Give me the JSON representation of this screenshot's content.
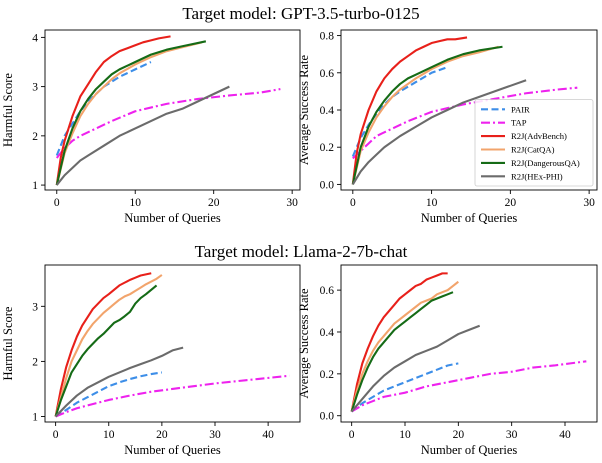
{
  "figure": {
    "row_titles": [
      "Target model: GPT-3.5-turbo-0125",
      "Target model: Llama-2-7b-chat"
    ]
  },
  "colors": {
    "PAIR": "#3d8ee8",
    "TAP": "#ee22ee",
    "R2J(AdvBench)": "#e8201a",
    "R2J(CatQA)": "#f2a46c",
    "R2J(DangerousQA)": "#156b16",
    "R2J(HEx-PHI)": "#6b6b6b"
  },
  "chart_data": [
    {
      "type": "line",
      "row_title": "Target model: GPT-3.5-turbo-0125",
      "xlabel": "Number of Queries",
      "ylabel": "Harmful Score",
      "xlim": [
        -1.5,
        31
      ],
      "ylim": [
        0.9,
        4.15
      ],
      "xticks": [
        0,
        10,
        20,
        30
      ],
      "yticks": [
        1,
        2,
        3,
        4
      ],
      "legend": null,
      "series": [
        {
          "name": "PAIR",
          "style": "dashed",
          "x": [
            0,
            0.5,
            1,
            2,
            3,
            4,
            5,
            6,
            8,
            10,
            12
          ],
          "y": [
            1.6,
            1.8,
            2.0,
            2.25,
            2.5,
            2.7,
            2.85,
            3.0,
            3.2,
            3.35,
            3.5
          ]
        },
        {
          "name": "TAP",
          "style": "dashdot",
          "x": [
            0,
            1,
            2,
            3,
            5,
            7,
            10,
            14,
            18,
            22,
            26,
            28.5
          ],
          "y": [
            1.55,
            1.75,
            1.9,
            2.0,
            2.15,
            2.3,
            2.5,
            2.65,
            2.75,
            2.82,
            2.88,
            2.95
          ]
        },
        {
          "name": "R2J(AdvBench)",
          "style": "solid",
          "x": [
            0,
            0.5,
            1,
            2,
            3,
            4,
            5,
            6,
            7,
            8,
            9,
            10,
            11,
            12,
            13,
            14.5
          ],
          "y": [
            1.0,
            1.55,
            1.9,
            2.4,
            2.8,
            3.05,
            3.3,
            3.5,
            3.62,
            3.72,
            3.78,
            3.84,
            3.9,
            3.94,
            3.98,
            4.02
          ]
        },
        {
          "name": "R2J(CatQA)",
          "style": "solid",
          "x": [
            0,
            1,
            2,
            3,
            4,
            5,
            6,
            7,
            8,
            10,
            12,
            14,
            16,
            18.5
          ],
          "y": [
            1.0,
            1.65,
            2.05,
            2.4,
            2.65,
            2.85,
            3.0,
            3.15,
            3.27,
            3.45,
            3.6,
            3.72,
            3.8,
            3.9
          ]
        },
        {
          "name": "R2J(DangerousQA)",
          "style": "solid",
          "x": [
            0,
            1,
            2,
            3,
            4,
            5,
            6,
            7,
            8,
            10,
            12,
            14,
            16,
            19
          ],
          "y": [
            1.0,
            1.7,
            2.15,
            2.5,
            2.75,
            2.95,
            3.1,
            3.25,
            3.35,
            3.5,
            3.65,
            3.75,
            3.82,
            3.92
          ]
        },
        {
          "name": "R2J(HEx-PHI)",
          "style": "solid",
          "x": [
            0,
            1,
            2,
            3,
            4,
            6,
            8,
            10,
            12,
            14,
            16,
            18,
            20,
            22
          ],
          "y": [
            1.0,
            1.2,
            1.35,
            1.5,
            1.6,
            1.8,
            2.0,
            2.15,
            2.3,
            2.45,
            2.55,
            2.7,
            2.85,
            3.0
          ]
        }
      ]
    },
    {
      "type": "line",
      "row_title": "Target model: GPT-3.5-turbo-0125",
      "xlabel": "Number of Queries",
      "ylabel": "Average Success Rate",
      "xlim": [
        -1.5,
        31
      ],
      "ylim": [
        -0.03,
        0.83
      ],
      "xticks": [
        0,
        10,
        20,
        30
      ],
      "yticks": [
        0.0,
        0.2,
        0.4,
        0.6,
        0.8
      ],
      "ytick_labels": [
        "0.0",
        "0.2",
        "0.4",
        "0.6",
        "0.8"
      ],
      "legend": {
        "placement": "lower-right",
        "entries": [
          "PAIR",
          "TAP",
          "R2J(AdvBench)",
          "R2J(CatQA)",
          "R2J(DangerousQA)",
          "R2J(HEx-PHI)"
        ]
      },
      "series": [
        {
          "name": "PAIR",
          "style": "dashed",
          "x": [
            0,
            0.5,
            1,
            2,
            3,
            4,
            5,
            6,
            8,
            10,
            12
          ],
          "y": [
            0.15,
            0.2,
            0.25,
            0.32,
            0.38,
            0.43,
            0.47,
            0.5,
            0.55,
            0.6,
            0.63
          ]
        },
        {
          "name": "TAP",
          "style": "dashdot",
          "x": [
            0,
            1,
            2,
            3,
            5,
            7,
            10,
            14,
            18,
            22,
            26,
            28.5
          ],
          "y": [
            0.14,
            0.18,
            0.22,
            0.26,
            0.3,
            0.34,
            0.39,
            0.43,
            0.46,
            0.49,
            0.51,
            0.52
          ]
        },
        {
          "name": "R2J(AdvBench)",
          "style": "solid",
          "x": [
            0,
            0.5,
            1,
            2,
            3,
            4,
            5,
            6,
            7,
            8,
            9,
            10,
            11,
            12,
            13,
            14.5
          ],
          "y": [
            0.0,
            0.17,
            0.27,
            0.4,
            0.5,
            0.57,
            0.62,
            0.66,
            0.69,
            0.72,
            0.74,
            0.76,
            0.77,
            0.78,
            0.78,
            0.79
          ]
        },
        {
          "name": "R2J(CatQA)",
          "style": "solid",
          "x": [
            0,
            1,
            2,
            3,
            4,
            5,
            6,
            7,
            8,
            10,
            12,
            14,
            16,
            18.5
          ],
          "y": [
            0.0,
            0.18,
            0.28,
            0.36,
            0.42,
            0.47,
            0.51,
            0.54,
            0.57,
            0.62,
            0.66,
            0.69,
            0.71,
            0.74
          ]
        },
        {
          "name": "R2J(DangerousQA)",
          "style": "solid",
          "x": [
            0,
            1,
            2,
            3,
            4,
            5,
            6,
            7,
            8,
            10,
            12,
            14,
            16,
            19
          ],
          "y": [
            0.0,
            0.2,
            0.31,
            0.39,
            0.45,
            0.5,
            0.54,
            0.57,
            0.59,
            0.63,
            0.67,
            0.7,
            0.72,
            0.74
          ]
        },
        {
          "name": "R2J(HEx-PHI)",
          "style": "solid",
          "x": [
            0,
            1,
            2,
            3,
            4,
            6,
            8,
            10,
            12,
            14,
            16,
            18,
            20,
            22
          ],
          "y": [
            0.0,
            0.07,
            0.12,
            0.16,
            0.2,
            0.26,
            0.31,
            0.36,
            0.4,
            0.44,
            0.47,
            0.5,
            0.53,
            0.56
          ]
        }
      ]
    },
    {
      "type": "line",
      "row_title": "Target model: Llama-2-7b-chat",
      "xlabel": "Number of Queries",
      "ylabel": "Harmful Score",
      "xlim": [
        -2,
        46
      ],
      "ylim": [
        0.9,
        3.75
      ],
      "xticks": [
        0,
        10,
        20,
        30,
        40
      ],
      "yticks": [
        1,
        2,
        3
      ],
      "legend": null,
      "series": [
        {
          "name": "PAIR",
          "style": "dashed",
          "x": [
            0,
            2,
            4,
            6,
            8,
            10,
            12,
            14,
            16,
            18,
            20
          ],
          "y": [
            1.0,
            1.12,
            1.25,
            1.35,
            1.45,
            1.55,
            1.62,
            1.68,
            1.73,
            1.77,
            1.8
          ]
        },
        {
          "name": "TAP",
          "style": "dashdot",
          "x": [
            0,
            2,
            4,
            6,
            8,
            10,
            14,
            18,
            22,
            26,
            30,
            34,
            38,
            41,
            44
          ],
          "y": [
            1.0,
            1.08,
            1.15,
            1.2,
            1.25,
            1.3,
            1.38,
            1.45,
            1.5,
            1.55,
            1.6,
            1.64,
            1.68,
            1.71,
            1.74
          ]
        },
        {
          "name": "R2J(AdvBench)",
          "style": "solid",
          "x": [
            0,
            1,
            2,
            3,
            4,
            5,
            6,
            7,
            8,
            9,
            10,
            11,
            12,
            13,
            14,
            15,
            16,
            17,
            18
          ],
          "y": [
            1.0,
            1.5,
            1.9,
            2.2,
            2.45,
            2.65,
            2.8,
            2.95,
            3.05,
            3.15,
            3.22,
            3.3,
            3.38,
            3.43,
            3.48,
            3.52,
            3.56,
            3.58,
            3.6
          ]
        },
        {
          "name": "R2J(CatQA)",
          "style": "solid",
          "x": [
            0,
            1,
            2,
            3,
            4,
            5,
            6,
            7,
            8,
            9,
            10,
            11,
            12,
            13,
            14,
            15,
            16,
            17,
            18,
            19,
            20
          ],
          "y": [
            1.0,
            1.35,
            1.7,
            2.0,
            2.2,
            2.4,
            2.55,
            2.68,
            2.78,
            2.88,
            2.96,
            3.04,
            3.12,
            3.18,
            3.22,
            3.28,
            3.34,
            3.4,
            3.45,
            3.5,
            3.57
          ]
        },
        {
          "name": "R2J(DangerousQA)",
          "style": "solid",
          "x": [
            0,
            1,
            2,
            3,
            4,
            5,
            6,
            7,
            8,
            9,
            10,
            11,
            12,
            13,
            14,
            15,
            16,
            17,
            18,
            19
          ],
          "y": [
            1.0,
            1.3,
            1.55,
            1.8,
            1.95,
            2.1,
            2.22,
            2.32,
            2.42,
            2.5,
            2.6,
            2.7,
            2.75,
            2.82,
            2.9,
            3.05,
            3.15,
            3.22,
            3.3,
            3.38
          ]
        },
        {
          "name": "R2J(HEx-PHI)",
          "style": "solid",
          "x": [
            0,
            2,
            4,
            6,
            8,
            10,
            12,
            14,
            16,
            18,
            20,
            22,
            24
          ],
          "y": [
            1.0,
            1.2,
            1.38,
            1.52,
            1.62,
            1.72,
            1.8,
            1.88,
            1.95,
            2.02,
            2.1,
            2.2,
            2.25
          ]
        }
      ]
    },
    {
      "type": "line",
      "row_title": "Target model: Llama-2-7b-chat",
      "xlabel": "Number of Queries",
      "ylabel": "Average Success Rate",
      "xlim": [
        -2,
        46
      ],
      "ylim": [
        -0.03,
        0.72
      ],
      "xticks": [
        0,
        10,
        20,
        30,
        40
      ],
      "yticks": [
        0.0,
        0.2,
        0.4,
        0.6
      ],
      "ytick_labels": [
        "0.0",
        "0.2",
        "0.4",
        "0.6"
      ],
      "legend": null,
      "series": [
        {
          "name": "PAIR",
          "style": "dashed",
          "x": [
            0,
            2,
            4,
            6,
            8,
            10,
            12,
            14,
            16,
            18,
            20
          ],
          "y": [
            0.02,
            0.06,
            0.09,
            0.12,
            0.14,
            0.16,
            0.18,
            0.2,
            0.22,
            0.24,
            0.25
          ]
        },
        {
          "name": "TAP",
          "style": "dashdot",
          "x": [
            0,
            2,
            4,
            6,
            8,
            10,
            14,
            18,
            22,
            26,
            30,
            34,
            38,
            41,
            44
          ],
          "y": [
            0.02,
            0.05,
            0.07,
            0.09,
            0.1,
            0.11,
            0.14,
            0.16,
            0.18,
            0.2,
            0.21,
            0.23,
            0.24,
            0.25,
            0.26
          ]
        },
        {
          "name": "R2J(AdvBench)",
          "style": "solid",
          "x": [
            0,
            1,
            2,
            3,
            4,
            5,
            6,
            7,
            8,
            9,
            10,
            11,
            12,
            13,
            14,
            15,
            16,
            17,
            18
          ],
          "y": [
            0.02,
            0.15,
            0.25,
            0.32,
            0.38,
            0.43,
            0.47,
            0.5,
            0.53,
            0.56,
            0.58,
            0.6,
            0.62,
            0.63,
            0.65,
            0.66,
            0.67,
            0.68,
            0.68
          ]
        },
        {
          "name": "R2J(CatQA)",
          "style": "solid",
          "x": [
            0,
            1,
            2,
            3,
            4,
            5,
            6,
            7,
            8,
            9,
            10,
            11,
            12,
            13,
            14,
            15,
            16,
            17,
            18,
            19,
            20
          ],
          "y": [
            0.02,
            0.12,
            0.2,
            0.26,
            0.31,
            0.35,
            0.38,
            0.41,
            0.44,
            0.46,
            0.48,
            0.5,
            0.52,
            0.54,
            0.55,
            0.56,
            0.58,
            0.59,
            0.6,
            0.62,
            0.64
          ]
        },
        {
          "name": "R2J(DangerousQA)",
          "style": "solid",
          "x": [
            0,
            1,
            2,
            3,
            4,
            5,
            6,
            7,
            8,
            9,
            10,
            11,
            12,
            13,
            14,
            15,
            16,
            17,
            18,
            19
          ],
          "y": [
            0.02,
            0.1,
            0.17,
            0.23,
            0.28,
            0.32,
            0.35,
            0.38,
            0.41,
            0.43,
            0.45,
            0.47,
            0.49,
            0.51,
            0.53,
            0.55,
            0.56,
            0.57,
            0.58,
            0.59
          ]
        },
        {
          "name": "R2J(HEx-PHI)",
          "style": "solid",
          "x": [
            0,
            2,
            4,
            6,
            8,
            10,
            12,
            14,
            16,
            18,
            20,
            22,
            24
          ],
          "y": [
            0.02,
            0.08,
            0.14,
            0.19,
            0.23,
            0.26,
            0.29,
            0.31,
            0.33,
            0.36,
            0.39,
            0.41,
            0.43
          ]
        }
      ]
    }
  ]
}
